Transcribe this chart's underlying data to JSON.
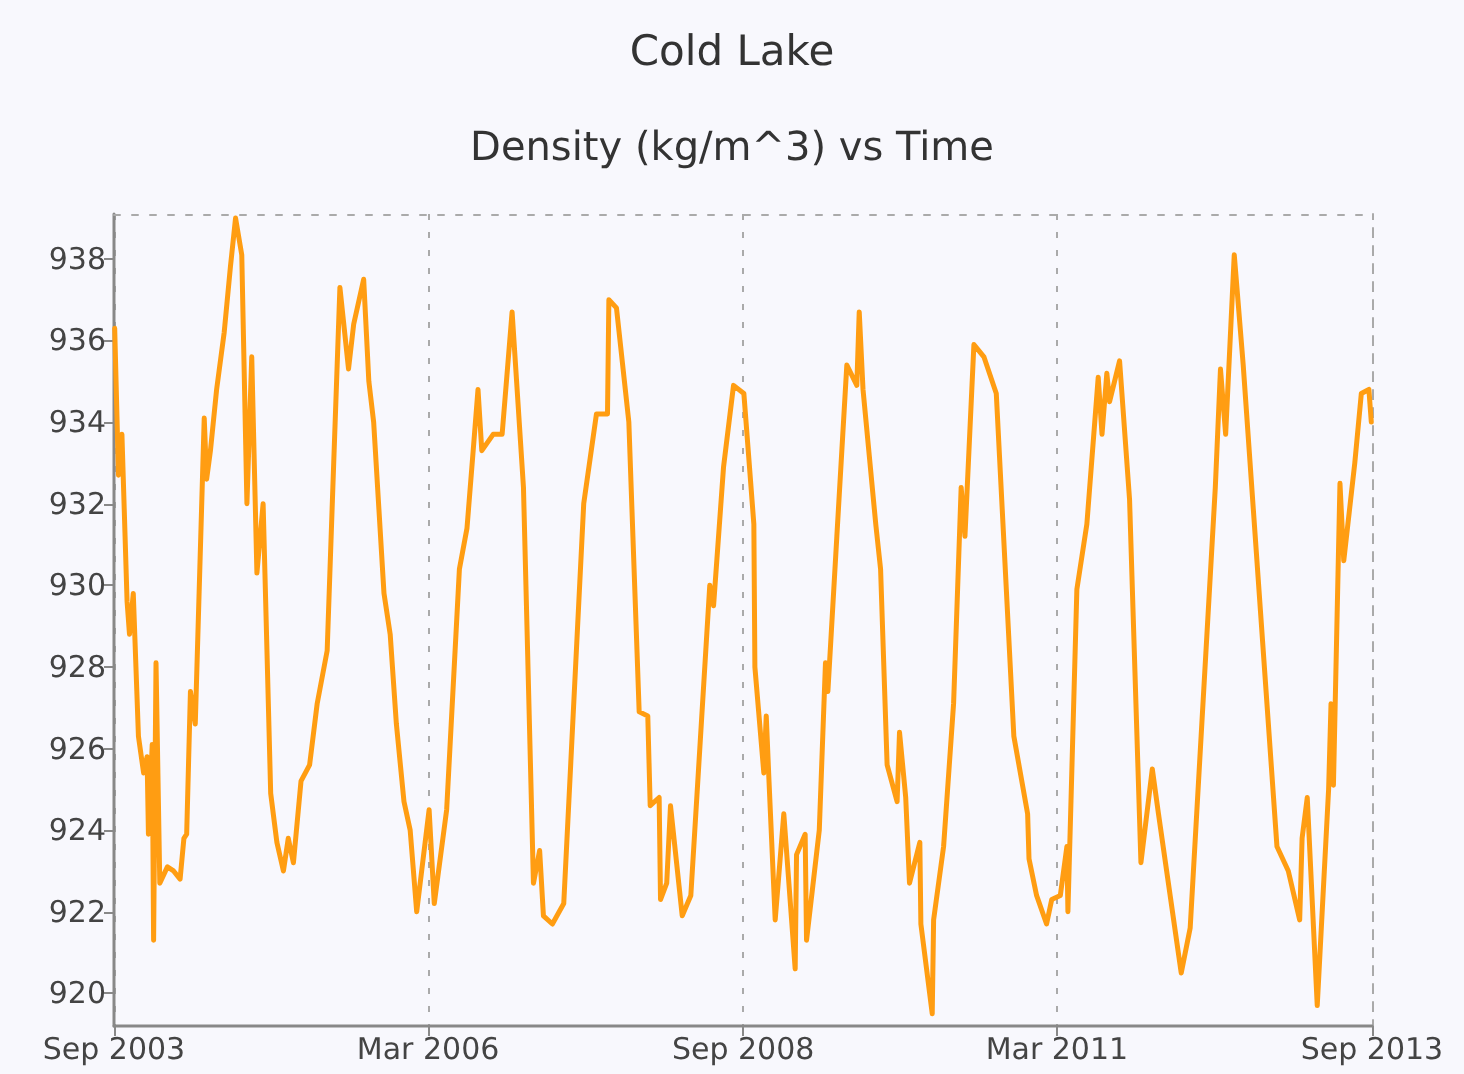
{
  "chart_data": {
    "type": "line",
    "title": "Cold Lake",
    "subtitle": "Density (kg/m^3) vs Time",
    "xlim": [
      "2003-09-01",
      "2013-09-01"
    ],
    "xticks": [
      {
        "value": "2003-09-01",
        "label": "Sep 2003"
      },
      {
        "value": "2006-03-01",
        "label": "Mar 2006"
      },
      {
        "value": "2008-09-01",
        "label": "Sep 2008"
      },
      {
        "value": "2011-03-01",
        "label": "Mar 2011"
      },
      {
        "value": "2013-09-01",
        "label": "Sep 2013"
      }
    ],
    "ylim": [
      919.2,
      939.1
    ],
    "yticks": [
      920,
      922,
      924,
      926,
      928,
      930,
      932,
      934,
      936,
      938
    ],
    "grid": "x",
    "marker": "none",
    "line_style": "solid",
    "series": [
      {
        "color": "#ff9d12",
        "x": [
          "2003-09-03",
          "2003-09-14",
          "2003-09-24",
          "2003-10-09",
          "2003-10-16",
          "2003-10-27",
          "2003-11-11",
          "2003-11-26",
          "2003-12-06",
          "2003-12-10",
          "2003-12-21",
          "2003-12-25",
          "2004-01-01",
          "2004-01-12",
          "2004-02-03",
          "2004-02-21",
          "2004-03-11",
          "2004-03-22",
          "2004-03-30",
          "2004-04-10",
          "2004-04-24",
          "2004-05-20",
          "2004-05-27",
          "2004-06-07",
          "2004-06-25",
          "2004-07-17",
          "2004-08-04",
          "2004-08-19",
          "2004-09-06",
          "2004-09-21",
          "2004-10-05",
          "2004-10-20",
          "2004-11-07",
          "2004-11-29",
          "2004-12-17",
          "2005-01-05",
          "2005-01-19",
          "2005-02-03",
          "2005-02-25",
          "2005-03-22",
          "2005-04-13",
          "2005-05-12",
          "2005-05-31",
          "2005-06-18",
          "2005-07-13",
          "2005-07-28",
          "2005-08-26",
          "2005-09-10",
          "2005-09-24",
          "2005-10-24",
          "2005-11-11",
          "2005-11-29",
          "2005-12-21",
          "2006-01-08",
          "2006-01-27",
          "2006-03-04",
          "2006-03-19",
          "2006-04-24",
          "2006-05-31",
          "2006-06-22",
          "2006-07-10",
          "2006-07-24",
          "2006-08-04",
          "2006-09-06",
          "2006-10-02",
          "2006-10-31",
          "2006-12-03",
          "2007-01-01",
          "2007-01-19",
          "2007-01-30",
          "2007-02-25",
          "2007-03-30",
          "2007-05-27",
          "2007-07-03",
          "2007-08-04",
          "2007-08-08",
          "2007-08-30",
          "2007-10-05",
          "2007-11-04",
          "2007-11-29",
          "2007-12-06",
          "2008-01-01",
          "2008-01-05",
          "2008-01-23",
          "2008-02-03",
          "2008-03-08",
          "2008-04-02",
          "2008-05-27",
          "2008-06-07",
          "2008-07-06",
          "2008-08-04",
          "2008-09-03",
          "2008-10-02",
          "2008-10-05",
          "2008-10-31",
          "2008-11-07",
          "2008-11-15",
          "2008-12-03",
          "2008-12-28",
          "2009-01-30",
          "2009-02-03",
          "2009-02-28",
          "2009-03-04",
          "2009-04-10",
          "2009-04-28",
          "2009-05-05",
          "2009-05-31",
          "2009-06-29",
          "2009-07-28",
          "2009-08-04",
          "2009-08-15",
          "2009-09-21",
          "2009-10-05",
          "2009-10-24",
          "2009-11-22",
          "2009-11-29",
          "2009-12-17",
          "2009-12-28",
          "2010-01-27",
          "2010-01-30",
          "2010-03-04",
          "2010-03-08",
          "2010-04-06",
          "2010-05-05",
          "2010-05-27",
          "2010-06-07",
          "2010-07-03",
          "2010-08-01",
          "2010-09-06",
          "2010-10-27",
          "2010-12-06",
          "2010-12-10",
          "2011-01-01",
          "2011-01-30",
          "2011-02-14",
          "2011-03-11",
          "2011-03-30",
          "2011-04-02",
          "2011-04-28",
          "2011-05-27",
          "2011-06-29",
          "2011-07-10",
          "2011-07-24",
          "2011-08-01",
          "2011-08-30",
          "2011-09-28",
          "2011-10-31",
          "2011-12-03",
          "2011-12-21",
          "2012-02-25",
          "2012-03-22",
          "2012-06-03",
          "2012-06-18",
          "2012-07-03",
          "2012-07-28",
          "2012-08-23",
          "2012-11-29",
          "2013-01-01",
          "2013-02-03",
          "2013-02-10",
          "2013-02-25",
          "2013-03-26",
          "2013-04-28",
          "2013-05-05",
          "2013-05-12",
          "2013-05-31",
          "2013-06-11",
          "2013-07-13",
          "2013-08-01",
          "2013-08-23",
          "2013-08-30"
        ],
        "values": [
          936.3,
          932.7,
          933.7,
          929.6,
          928.8,
          929.8,
          926.3,
          925.4,
          925.8,
          923.9,
          926.1,
          921.3,
          928.1,
          922.7,
          923.1,
          923.0,
          922.8,
          923.8,
          923.9,
          927.4,
          926.6,
          934.1,
          932.6,
          933.3,
          934.8,
          936.2,
          937.8,
          939.0,
          938.1,
          932.0,
          935.6,
          930.3,
          932.0,
          924.9,
          923.7,
          923.0,
          923.8,
          923.2,
          925.2,
          925.6,
          927.1,
          928.4,
          933.0,
          937.3,
          935.3,
          936.4,
          937.5,
          935.0,
          934.0,
          929.8,
          928.8,
          926.6,
          924.7,
          924.0,
          922.0,
          924.5,
          922.2,
          924.5,
          930.4,
          931.4,
          933.3,
          934.8,
          933.3,
          933.7,
          933.7,
          936.7,
          932.4,
          922.7,
          923.5,
          921.9,
          921.7,
          922.2,
          932.0,
          934.2,
          934.2,
          937.0,
          936.8,
          934.0,
          926.9,
          926.8,
          924.6,
          924.8,
          922.3,
          922.7,
          924.6,
          921.9,
          922.4,
          930.0,
          929.5,
          932.9,
          934.9,
          934.7,
          931.5,
          928.0,
          925.4,
          926.8,
          925.2,
          921.8,
          924.4,
          920.6,
          923.4,
          923.9,
          921.3,
          924.0,
          928.1,
          927.4,
          931.2,
          935.4,
          934.9,
          936.7,
          934.8,
          931.5,
          930.4,
          925.6,
          924.7,
          926.4,
          924.8,
          922.7,
          923.7,
          921.7,
          919.5,
          921.8,
          923.6,
          927.1,
          932.4,
          931.2,
          935.9,
          935.6,
          934.7,
          926.3,
          924.4,
          923.3,
          922.4,
          921.7,
          922.3,
          922.4,
          923.6,
          922.0,
          929.9,
          931.5,
          935.1,
          933.7,
          935.2,
          934.5,
          935.5,
          932.1,
          923.2,
          925.5,
          924.4,
          920.5,
          921.6,
          932.4,
          935.3,
          933.7,
          938.1,
          935.4,
          923.6,
          923.0,
          921.8,
          923.8,
          924.8,
          919.7,
          925.0,
          927.1,
          925.1,
          932.5,
          930.6,
          933.0,
          934.7,
          934.8,
          934.0
        ]
      }
    ]
  }
}
